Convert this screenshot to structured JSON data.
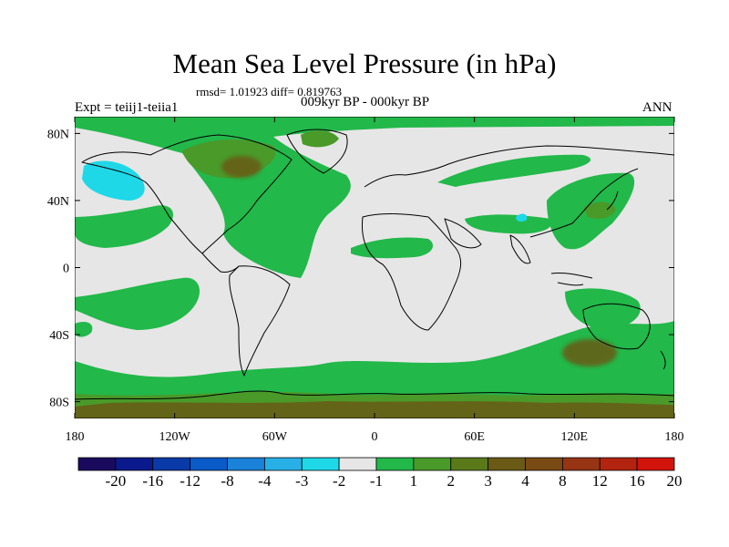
{
  "header": {
    "title": "Mean Sea Level Pressure (in hPa)",
    "stats": "rmsd= 1.01923 diff= 0.819763",
    "expt": "Expt = teiij1-teiia1",
    "period": "009kyr BP - 000kyr BP",
    "season": "ANN"
  },
  "chart_data": {
    "type": "heatmap",
    "title": "Mean Sea Level Pressure (in hPa)",
    "subtitle": "009kyr BP - 000kyr BP",
    "xlim": [
      -180,
      180
    ],
    "ylim": [
      -90,
      90
    ],
    "x_ticks": [
      {
        "value": -180,
        "label": "180"
      },
      {
        "value": -120,
        "label": "120W"
      },
      {
        "value": -60,
        "label": "60W"
      },
      {
        "value": 0,
        "label": "0"
      },
      {
        "value": 60,
        "label": "60E"
      },
      {
        "value": 120,
        "label": "120E"
      },
      {
        "value": 180,
        "label": "180"
      }
    ],
    "y_ticks": [
      {
        "value": 80,
        "label": "80N"
      },
      {
        "value": 40,
        "label": "40N"
      },
      {
        "value": 0,
        "label": "0"
      },
      {
        "value": -40,
        "label": "40S"
      },
      {
        "value": -80,
        "label": "80S"
      }
    ],
    "colorbar": {
      "colors": [
        "#1a0a5e",
        "#0a1a8c",
        "#0a3aa8",
        "#0a5ac8",
        "#1a82d8",
        "#28b0e6",
        "#1ed8e8",
        "#e6e6e6",
        "#22b84a",
        "#4a9a2a",
        "#5a7a1a",
        "#6a5a16",
        "#7a4a14",
        "#963414",
        "#b22410",
        "#d2140c"
      ],
      "labels": [
        "-20",
        "-16",
        "-12",
        "-8",
        "-4",
        "-3",
        "-2",
        "-1",
        "1",
        "2",
        "3",
        "4",
        "8",
        "12",
        "16",
        "20"
      ]
    },
    "regions": [
      {
        "level": "2",
        "color": "#22b84a",
        "description": "Southern Ocean band",
        "lon": [
          -180,
          180
        ],
        "lat": [
          -90,
          -55
        ]
      },
      {
        "level": "3",
        "color": "#4a9a2a",
        "description": "Antarctic coast",
        "lon": [
          -180,
          180
        ],
        "lat": [
          -90,
          -75
        ]
      },
      {
        "level": "4",
        "color": "#6a5a16",
        "description": "Southern Indian Ocean high",
        "center": [
          122,
          -45
        ],
        "values": 4
      },
      {
        "level": "-2",
        "color": "#1ed8e8",
        "description": "North Pacific low",
        "center": [
          -152,
          55
        ],
        "values": -2
      },
      {
        "level": "3",
        "color": "#4a9a2a",
        "description": "NW Pacific / Japan",
        "center": [
          125,
          35
        ],
        "values": 3
      },
      {
        "level": "4",
        "color": "#6a5a16",
        "description": "Hudson Bay / Canada",
        "center": [
          -85,
          68
        ],
        "values": 4
      }
    ]
  }
}
